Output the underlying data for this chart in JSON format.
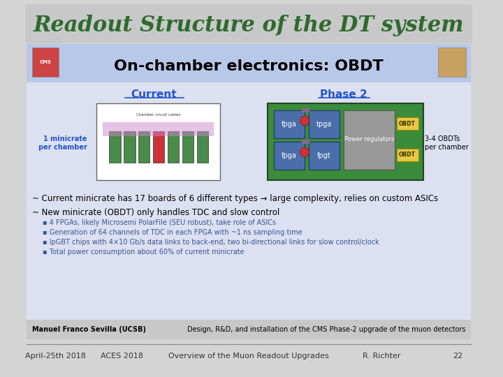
{
  "bg_color": "#d4d4d4",
  "slide_bg": "#e8e8f0",
  "title_text": "Readout Structure of the DT system",
  "title_color": "#2d6a2d",
  "title_bg": "#c8c8c8",
  "content_bg": "#dde0f0",
  "header_text": "On-chamber electronics: OBDT",
  "header_color": "#000000",
  "current_label": "Current",
  "phase2_label": "Phase 2",
  "left_side_text": "1 minicrate\nper chamber",
  "right_side_text": "3-4 OBDTs\nper chamber",
  "bullet1": "~ Current minicrate has 17 boards of 6 different types → large complexity, relies on custom ASICs",
  "bullet2": "~ New minicrate (OBDT) only handles TDC and slow control",
  "sub_bullet1": "▪ 4 FPGAs, likely Microsemi PolarFile (SEU robust), take role of ASICs",
  "sub_bullet2": "▪ Generation of 64 channels of TDC in each FPGA with ~1 ns sampling time",
  "sub_bullet3": "▪ lpGBT chips with 4×10 Gb/s data links to back-end, two bi-directional links for slow control/clock",
  "sub_bullet4": "▪ Total power consumption about 60% of current minicrate",
  "footer_left": "Manuel Franco Sevilla (UCSB)",
  "footer_right": "Design, R&D, and installation of the CMS Phase-2 upgrade of the muon detectors",
  "bottom_left": "April-25th 2018",
  "bottom_c1": "ACES 2018",
  "bottom_c2": "Overview of the Muon Readout Upgrades",
  "bottom_c3": "R. Richter",
  "bottom_right": "22",
  "footer_bg": "#c8c8c8",
  "green_box": "#3a8c3a",
  "blue_box": "#4a6eaa",
  "gray_box": "#888888",
  "yellow_box": "#e8c84a",
  "red_box": "#cc3333",
  "purple_box": "#886688"
}
